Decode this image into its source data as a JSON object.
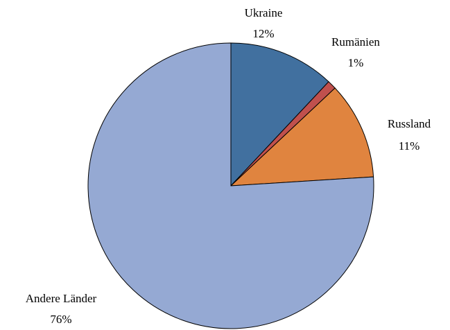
{
  "chart_data": {
    "type": "pie",
    "categories": [
      "Ukraine",
      "Rumänien",
      "Russland",
      "Andere Länder"
    ],
    "values": [
      12,
      1,
      11,
      76
    ],
    "value_labels": [
      "12%",
      "1%",
      "11%",
      "76%"
    ],
    "colors": [
      "#41709f",
      "#c0504d",
      "#e0843f",
      "#95a9d3"
    ]
  }
}
